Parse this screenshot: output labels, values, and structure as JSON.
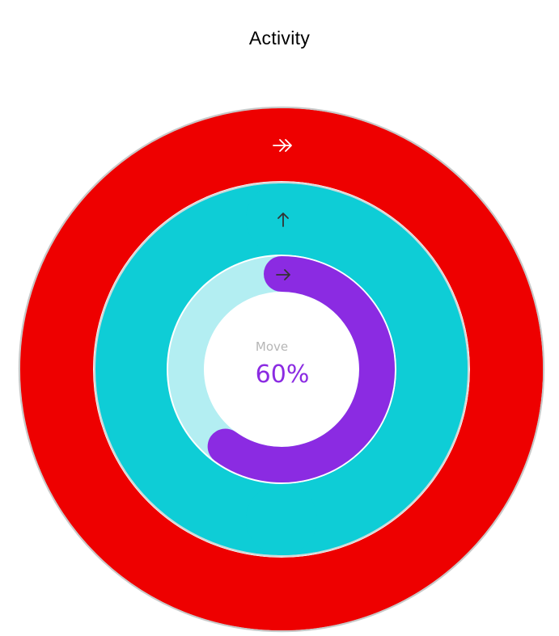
{
  "chart_data": {
    "type": "radial-bar",
    "title": "Activity",
    "unit": "%",
    "series": [
      {
        "label": "Move",
        "value": 60,
        "track_color": "#b3eef2",
        "bar_color": "#8b2be2",
        "icon": "right-arrow-icon"
      },
      {
        "label": "",
        "value": 150,
        "track_color": "#ffffff",
        "bar_color": "#0ecdd6",
        "icon": "up-arrow-icon"
      },
      {
        "label": "",
        "value": 170,
        "track_color": "#f88080",
        "bar_color": "#ee0000",
        "icon": "double-right-arrow-icon"
      }
    ],
    "center": {
      "label": "Move",
      "value_text": "60%",
      "label_color": "#b6b6b6",
      "value_color": "#8b2be2"
    }
  }
}
